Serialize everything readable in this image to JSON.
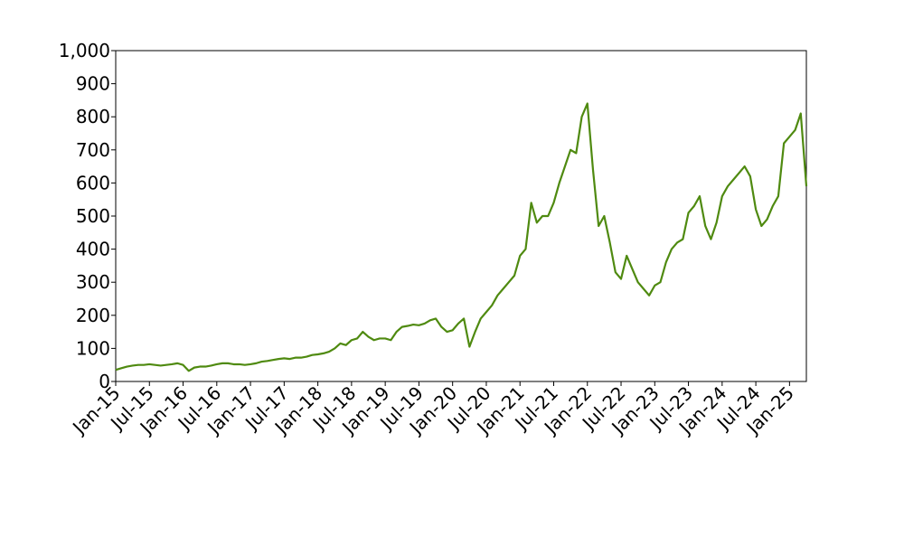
{
  "chart_data": {
    "type": "line",
    "color": "#4f8a10",
    "x": [
      "2015-01",
      "2015-02",
      "2015-03",
      "2015-04",
      "2015-05",
      "2015-06",
      "2015-07",
      "2015-08",
      "2015-09",
      "2015-10",
      "2015-11",
      "2015-12",
      "2016-01",
      "2016-02",
      "2016-03",
      "2016-04",
      "2016-05",
      "2016-06",
      "2016-07",
      "2016-08",
      "2016-09",
      "2016-10",
      "2016-11",
      "2016-12",
      "2017-01",
      "2017-02",
      "2017-03",
      "2017-04",
      "2017-05",
      "2017-06",
      "2017-07",
      "2017-08",
      "2017-09",
      "2017-10",
      "2017-11",
      "2017-12",
      "2018-01",
      "2018-02",
      "2018-03",
      "2018-04",
      "2018-05",
      "2018-06",
      "2018-07",
      "2018-08",
      "2018-09",
      "2018-10",
      "2018-11",
      "2018-12",
      "2019-01",
      "2019-02",
      "2019-03",
      "2019-04",
      "2019-05",
      "2019-06",
      "2019-07",
      "2019-08",
      "2019-09",
      "2019-10",
      "2019-11",
      "2019-12",
      "2020-01",
      "2020-02",
      "2020-03",
      "2020-04",
      "2020-05",
      "2020-06",
      "2020-07",
      "2020-08",
      "2020-09",
      "2020-10",
      "2020-11",
      "2020-12",
      "2021-01",
      "2021-02",
      "2021-03",
      "2021-04",
      "2021-05",
      "2021-06",
      "2021-07",
      "2021-08",
      "2021-09",
      "2021-10",
      "2021-11",
      "2021-12",
      "2022-01",
      "2022-02",
      "2022-03",
      "2022-04",
      "2022-05",
      "2022-06",
      "2022-07",
      "2022-08",
      "2022-09",
      "2022-10",
      "2022-11",
      "2022-12",
      "2023-01",
      "2023-02",
      "2023-03",
      "2023-04",
      "2023-05",
      "2023-06",
      "2023-07",
      "2023-08",
      "2023-09",
      "2023-10",
      "2023-11",
      "2023-12",
      "2024-01",
      "2024-02",
      "2024-03",
      "2024-04",
      "2024-05",
      "2024-06",
      "2024-07",
      "2024-08",
      "2024-09",
      "2024-10",
      "2024-11",
      "2024-12",
      "2025-01",
      "2025-02",
      "2025-03",
      "2025-04"
    ],
    "values": [
      35,
      40,
      45,
      48,
      50,
      50,
      52,
      50,
      48,
      50,
      52,
      55,
      50,
      32,
      42,
      45,
      45,
      48,
      52,
      55,
      55,
      52,
      52,
      50,
      52,
      55,
      60,
      62,
      65,
      68,
      70,
      68,
      72,
      72,
      75,
      80,
      82,
      85,
      90,
      100,
      115,
      110,
      125,
      130,
      150,
      135,
      125,
      130,
      130,
      125,
      150,
      165,
      168,
      172,
      170,
      175,
      185,
      190,
      165,
      150,
      155,
      175,
      190,
      105,
      150,
      190,
      210,
      230,
      260,
      280,
      300,
      320,
      380,
      400,
      540,
      480,
      500,
      500,
      540,
      600,
      650,
      700,
      690,
      800,
      840,
      640,
      470,
      500,
      420,
      330,
      310,
      380,
      340,
      300,
      280,
      260,
      290,
      300,
      360,
      400,
      420,
      430,
      510,
      530,
      560,
      470,
      430,
      480,
      560,
      590,
      610,
      630,
      650,
      620,
      520,
      470,
      490,
      530,
      560,
      720,
      740,
      760,
      810,
      590
    ],
    "xlim": [
      "2015-01",
      "2025-04"
    ],
    "xticks": [
      {
        "value": "2015-01",
        "label": "Jan-15"
      },
      {
        "value": "2015-07",
        "label": "Jul-15"
      },
      {
        "value": "2016-01",
        "label": "Jan-16"
      },
      {
        "value": "2016-07",
        "label": "Jul-16"
      },
      {
        "value": "2017-01",
        "label": "Jan-17"
      },
      {
        "value": "2017-07",
        "label": "Jul-17"
      },
      {
        "value": "2018-01",
        "label": "Jan-18"
      },
      {
        "value": "2018-07",
        "label": "Jul-18"
      },
      {
        "value": "2019-01",
        "label": "Jan-19"
      },
      {
        "value": "2019-07",
        "label": "Jul-19"
      },
      {
        "value": "2020-01",
        "label": "Jan-20"
      },
      {
        "value": "2020-07",
        "label": "Jul-20"
      },
      {
        "value": "2021-01",
        "label": "Jan-21"
      },
      {
        "value": "2021-07",
        "label": "Jul-21"
      },
      {
        "value": "2022-01",
        "label": "Jan-22"
      },
      {
        "value": "2022-07",
        "label": "Jul-22"
      },
      {
        "value": "2023-01",
        "label": "Jan-23"
      },
      {
        "value": "2023-07",
        "label": "Jul-23"
      },
      {
        "value": "2024-01",
        "label": "Jan-24"
      },
      {
        "value": "2024-07",
        "label": "Jul-24"
      },
      {
        "value": "2025-01",
        "label": "Jan-25"
      }
    ],
    "ylim": [
      0,
      1000
    ],
    "yticks": [
      0,
      100,
      200,
      300,
      400,
      500,
      600,
      700,
      800,
      900,
      {
        "value": 1000,
        "label": "1,000"
      }
    ]
  }
}
